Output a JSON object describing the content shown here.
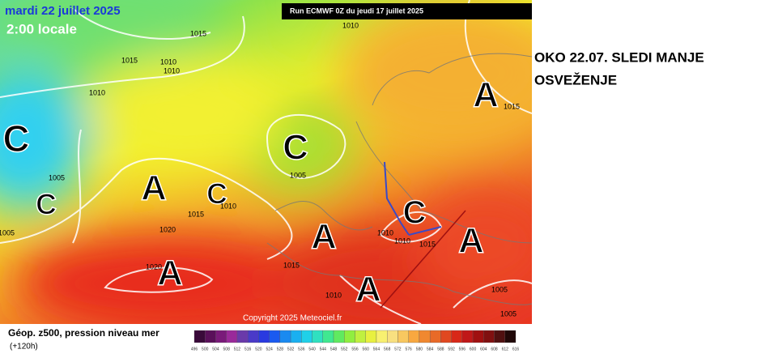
{
  "header": {
    "date": "mardi 22 juillet 2025",
    "time": "2:00 locale",
    "run": "Run ECMWF 0Z du jeudi 17 juillet 2025"
  },
  "annotation": {
    "lines": [
      "OKO 22.07. SLEDI MANJE",
      "OSVEŽENJE"
    ]
  },
  "map": {
    "pressure_centers": [
      "C",
      "C",
      "A",
      "C",
      "C",
      "A",
      "A",
      "C",
      "A",
      "A",
      "A"
    ],
    "isobar_labels": [
      1010,
      1015,
      1015,
      1010,
      1010,
      1010,
      1015,
      1005,
      1005,
      1015,
      1010,
      1005,
      1020,
      1020,
      1015,
      1010,
      1010,
      1015,
      1010,
      1005,
      1005
    ],
    "copyright": "Copyright 2025 Meteociel.fr"
  },
  "legend": {
    "title": "Géop. z500, pression niveau mer",
    "lead": "(+120h)",
    "scale": [
      496,
      500,
      504,
      508,
      512,
      516,
      520,
      524,
      528,
      532,
      536,
      540,
      544,
      548,
      552,
      556,
      560,
      564,
      568,
      572,
      576,
      580,
      584,
      588,
      592,
      596,
      600,
      604,
      608,
      612,
      616
    ]
  }
}
